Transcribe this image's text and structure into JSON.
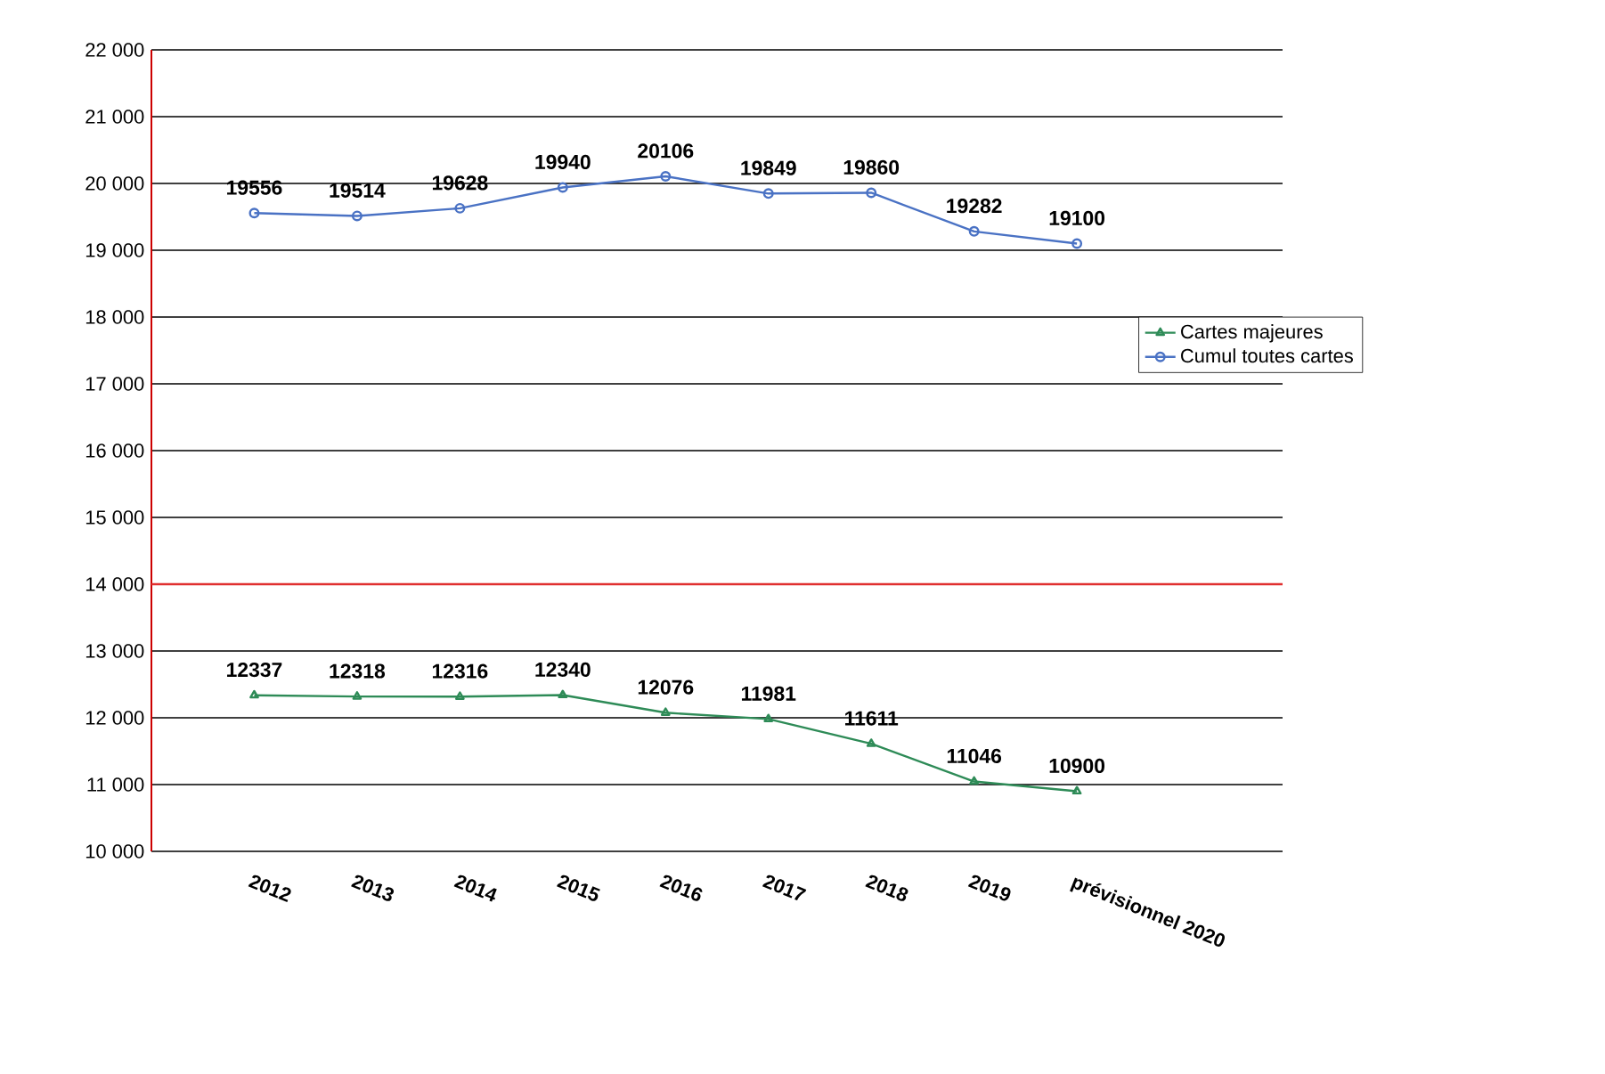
{
  "chart_data": {
    "type": "line",
    "categories": [
      "2012",
      "2013",
      "2014",
      "2015",
      "2016",
      "2017",
      "2018",
      "2019",
      "prévisionnel 2020"
    ],
    "series": [
      {
        "name": "Cartes majeures",
        "color": "#2e8b57",
        "marker": "triangle",
        "values": [
          12337,
          12318,
          12316,
          12340,
          12076,
          11981,
          11611,
          11046,
          10900
        ]
      },
      {
        "name": "Cumul toutes cartes",
        "color": "#4a72c4",
        "marker": "circle",
        "values": [
          19556,
          19514,
          19628,
          19940,
          20106,
          19849,
          19860,
          19282,
          19100
        ]
      }
    ],
    "ylim": [
      10000,
      22000
    ],
    "yticks": [
      {
        "value": 10000,
        "label": "10 000"
      },
      {
        "value": 11000,
        "label": "11 000"
      },
      {
        "value": 12000,
        "label": "12 000"
      },
      {
        "value": 13000,
        "label": "13 000"
      },
      {
        "value": 14000,
        "label": "14 000"
      },
      {
        "value": 15000,
        "label": "15 000"
      },
      {
        "value": 16000,
        "label": "16 000"
      },
      {
        "value": 17000,
        "label": "17 000"
      },
      {
        "value": 18000,
        "label": "18 000"
      },
      {
        "value": 19000,
        "label": "19 000"
      },
      {
        "value": 20000,
        "label": "20 000"
      },
      {
        "value": 21000,
        "label": "21 000"
      },
      {
        "value": 22000,
        "label": "22 000"
      }
    ],
    "ref_lines": [
      {
        "axis": "y",
        "value": 14000,
        "color": "#e03030"
      }
    ],
    "grid": "y",
    "legend": "right",
    "data_labels": true
  }
}
